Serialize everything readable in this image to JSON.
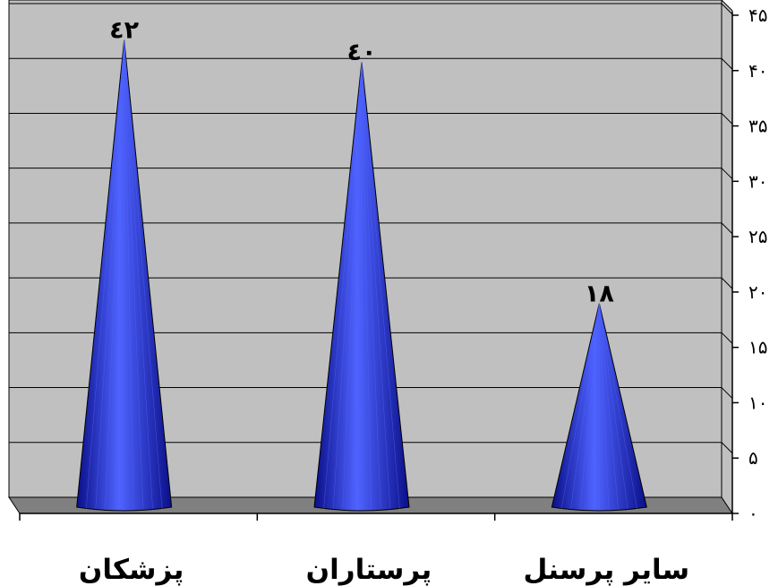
{
  "chart_data": {
    "type": "bar",
    "bar_shape": "cone",
    "categories": [
      "پزشکان",
      "پرستاران",
      "سایر پرسنل"
    ],
    "values": [
      42,
      40,
      18
    ],
    "data_labels": [
      "٤٢",
      "٤٠",
      "١٨"
    ],
    "ylim": [
      0,
      45
    ],
    "y_ticks": [
      0,
      5,
      10,
      15,
      20,
      25,
      30,
      35,
      40,
      45
    ],
    "y_tick_labels": [
      "۰",
      "۵",
      "۱۰",
      "۱۵",
      "۲۰",
      "۲۵",
      "۳۰",
      "۳۵",
      "۴۰",
      "۴۵"
    ],
    "y_axis_side": "right",
    "grid": true,
    "colors": {
      "plot_background": "#c0c0c0",
      "floor": "#808080",
      "bar": "#1f2fe0",
      "bar_light": "#4f63ff",
      "bar_dark": "#0a0f88",
      "gridline": "#000000"
    }
  }
}
